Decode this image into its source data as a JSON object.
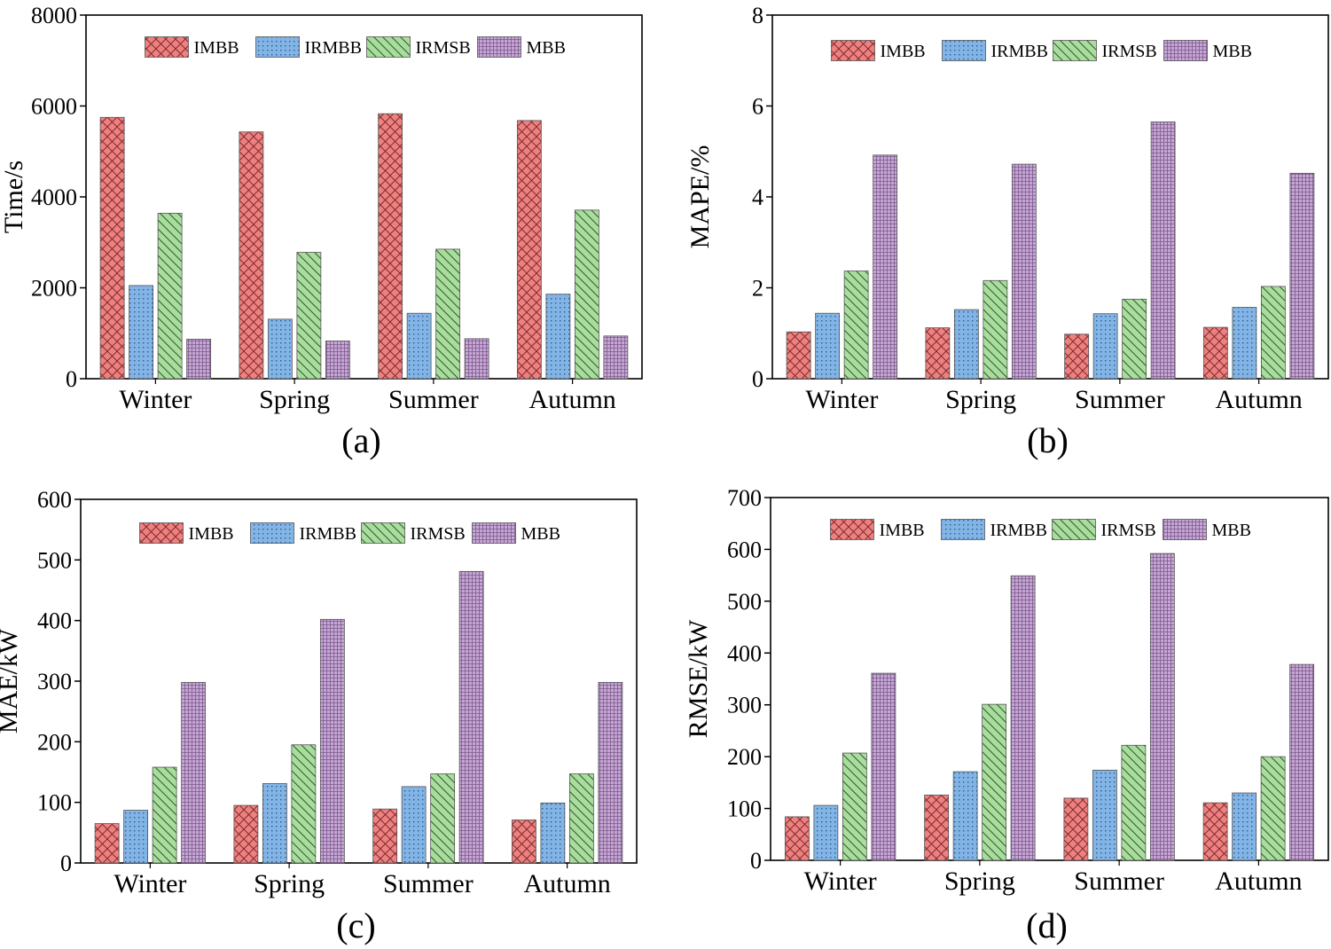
{
  "chart_data": [
    {
      "type": "bar",
      "panel": "(a)",
      "ylabel": "Time/s",
      "ylim": [
        0,
        8000
      ],
      "yticks": [
        0,
        2000,
        4000,
        6000,
        8000
      ],
      "categories": [
        "Winter",
        "Spring",
        "Summer",
        "Autumn"
      ],
      "legend": "top",
      "series": [
        {
          "name": "IMBB",
          "values": [
            5750,
            5430,
            5830,
            5680
          ]
        },
        {
          "name": "IRMBB",
          "values": [
            2050,
            1310,
            1440,
            1860
          ]
        },
        {
          "name": "IRMSB",
          "values": [
            3640,
            2780,
            2850,
            3710
          ]
        },
        {
          "name": "MBB",
          "values": [
            870,
            830,
            880,
            940
          ]
        }
      ]
    },
    {
      "type": "bar",
      "panel": "(b)",
      "ylabel": "MAPE/%",
      "ylim": [
        0,
        8
      ],
      "yticks": [
        0,
        2,
        4,
        6,
        8
      ],
      "categories": [
        "Winter",
        "Spring",
        "Summer",
        "Autumn"
      ],
      "legend": "top",
      "series": [
        {
          "name": "IMBB",
          "values": [
            1.03,
            1.12,
            0.98,
            1.13
          ]
        },
        {
          "name": "IRMBB",
          "values": [
            1.44,
            1.52,
            1.43,
            1.57
          ]
        },
        {
          "name": "IRMSB",
          "values": [
            2.37,
            2.16,
            1.75,
            2.03
          ]
        },
        {
          "name": "MBB",
          "values": [
            4.92,
            4.72,
            5.65,
            4.52
          ]
        }
      ]
    },
    {
      "type": "bar",
      "panel": "(c)",
      "ylabel": "MAE/kW",
      "ylim": [
        0,
        600
      ],
      "yticks": [
        0,
        100,
        200,
        300,
        400,
        500,
        600
      ],
      "categories": [
        "Winter",
        "Spring",
        "Summer",
        "Autumn"
      ],
      "legend": "top",
      "series": [
        {
          "name": "IMBB",
          "values": [
            65,
            95,
            89,
            71
          ]
        },
        {
          "name": "IRMBB",
          "values": [
            87,
            131,
            126,
            99
          ]
        },
        {
          "name": "IRMSB",
          "values": [
            158,
            195,
            147,
            147
          ]
        },
        {
          "name": "MBB",
          "values": [
            298,
            402,
            481,
            298
          ]
        }
      ]
    },
    {
      "type": "bar",
      "panel": "(d)",
      "ylabel": "RMSE/kW",
      "ylim": [
        0,
        700
      ],
      "yticks": [
        0,
        100,
        200,
        300,
        400,
        500,
        600,
        700
      ],
      "categories": [
        "Winter",
        "Spring",
        "Summer",
        "Autumn"
      ],
      "legend": "top",
      "series": [
        {
          "name": "IMBB",
          "values": [
            84,
            126,
            120,
            111
          ]
        },
        {
          "name": "IRMBB",
          "values": [
            106,
            171,
            174,
            130
          ]
        },
        {
          "name": "IRMSB",
          "values": [
            207,
            301,
            222,
            200
          ]
        },
        {
          "name": "MBB",
          "values": [
            361,
            549,
            592,
            378
          ]
        }
      ]
    }
  ],
  "colors": {
    "IMBB": "#f08080",
    "IRMBB": "#83b4e6",
    "IRMSB": "#a9dd9e",
    "MBB": "#c6a6d4"
  }
}
